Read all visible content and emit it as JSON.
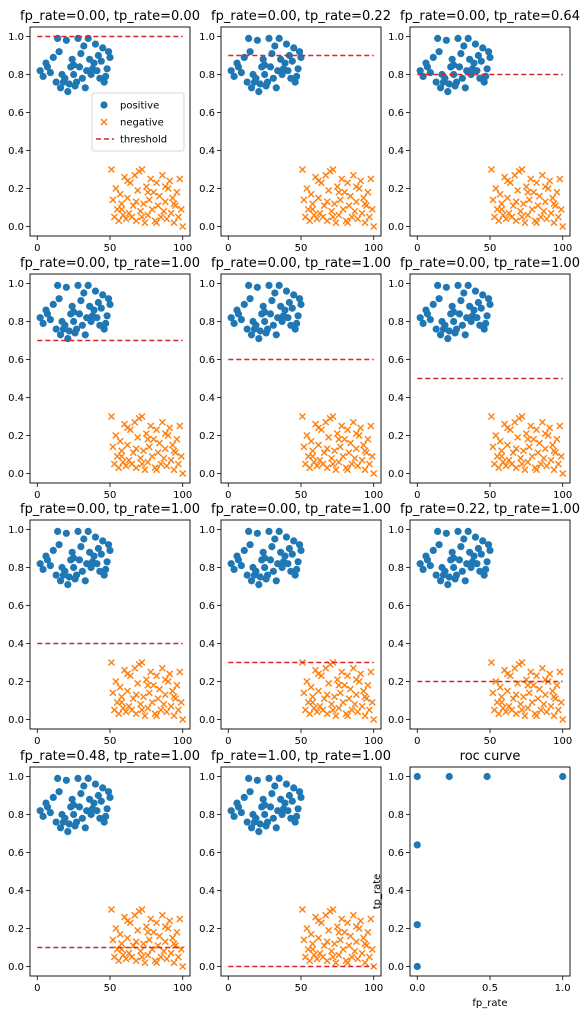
{
  "colors": {
    "positive": "#1f77b4",
    "negative": "#ff7f0e",
    "threshold": "#d62728",
    "axis": "#000000",
    "legend_border": "#cccccc"
  },
  "legend": {
    "labels": [
      "positive",
      "negative",
      "threshold"
    ]
  },
  "chart_data": {
    "type": "scatter",
    "positive": {
      "x": [
        2,
        4,
        6,
        7,
        9,
        11,
        13,
        14,
        16,
        17,
        18,
        19,
        20,
        21,
        22,
        23,
        24,
        25,
        26,
        27,
        28,
        29,
        30,
        31,
        32,
        33,
        34,
        35,
        36,
        37,
        38,
        39,
        40,
        41,
        42,
        43,
        44,
        45,
        46,
        47,
        48,
        49,
        50,
        15,
        25
      ],
      "y": [
        0.82,
        0.79,
        0.86,
        0.84,
        0.81,
        0.89,
        0.76,
        0.99,
        0.73,
        0.8,
        0.76,
        0.78,
        0.98,
        0.71,
        0.75,
        0.84,
        0.88,
        0.8,
        0.74,
        0.76,
        0.99,
        0.84,
        0.91,
        0.78,
        0.95,
        0.73,
        0.82,
        0.99,
        0.88,
        0.8,
        0.83,
        0.86,
        0.96,
        0.82,
        0.9,
        0.78,
        0.87,
        0.94,
        0.76,
        0.79,
        0.83,
        0.92,
        0.89,
        0.92,
        0.85
      ]
    },
    "negative": {
      "x": [
        51,
        52,
        53,
        54,
        55,
        56,
        57,
        58,
        59,
        60,
        61,
        62,
        63,
        64,
        65,
        66,
        67,
        68,
        69,
        70,
        71,
        72,
        73,
        74,
        75,
        76,
        77,
        78,
        79,
        80,
        81,
        82,
        83,
        84,
        85,
        86,
        87,
        88,
        89,
        90,
        91,
        92,
        93,
        94,
        95,
        96,
        97,
        98,
        99,
        100,
        58,
        62,
        68,
        72,
        76,
        82,
        88,
        94
      ],
      "y": [
        0.3,
        0.14,
        0.05,
        0.2,
        0.09,
        0.03,
        0.17,
        0.12,
        0.06,
        0.26,
        0.04,
        0.15,
        0.07,
        0.23,
        0.05,
        0.11,
        0.27,
        0.03,
        0.19,
        0.29,
        0.08,
        0.3,
        0.12,
        0.02,
        0.21,
        0.06,
        0.14,
        0.25,
        0.09,
        0.18,
        0.03,
        0.23,
        0.11,
        0.16,
        0.05,
        0.27,
        0.08,
        0.13,
        0.04,
        0.2,
        0.24,
        0.07,
        0.15,
        0.02,
        0.11,
        0.18,
        0.05,
        0.25,
        0.09,
        0.0,
        0.09,
        0.24,
        0.13,
        0.05,
        0.18,
        0.02,
        0.21,
        0.12
      ]
    },
    "xlim": [
      -5,
      105
    ],
    "ylim": [
      -0.05,
      1.05
    ],
    "xticks": [
      0,
      50,
      100
    ],
    "yticks": [
      0.0,
      0.2,
      0.4,
      0.6,
      0.8,
      1.0
    ],
    "thresholds": [
      1.0,
      0.9,
      0.8,
      0.7,
      0.6,
      0.5,
      0.4,
      0.3,
      0.2,
      0.1,
      0.0
    ],
    "panel_titles": [
      "fp_rate=0.00, tp_rate=0.00",
      "fp_rate=0.00, tp_rate=0.22",
      "fp_rate=0.00, tp_rate=0.64",
      "fp_rate=0.00, tp_rate=1.00",
      "fp_rate=0.00, tp_rate=1.00",
      "fp_rate=0.00, tp_rate=1.00",
      "fp_rate=0.00, tp_rate=1.00",
      "fp_rate=0.00, tp_rate=1.00",
      "fp_rate=0.22, tp_rate=1.00",
      "fp_rate=0.48, tp_rate=1.00",
      "fp_rate=1.00, tp_rate=1.00"
    ],
    "roc": {
      "type": "scatter",
      "title": "roc curve",
      "xlabel": "fp_rate",
      "ylabel": "tp_rate",
      "fp_rate": [
        0.0,
        0.0,
        0.0,
        0.0,
        0.22,
        0.48,
        1.0
      ],
      "tp_rate": [
        0.0,
        0.22,
        0.64,
        1.0,
        1.0,
        1.0,
        1.0
      ],
      "xlim": [
        -0.05,
        1.05
      ],
      "ylim": [
        -0.05,
        1.05
      ],
      "xticks": [
        0.0,
        0.5,
        1.0
      ],
      "yticks": [
        0.0,
        0.2,
        0.4,
        0.6,
        0.8,
        1.0
      ]
    }
  }
}
